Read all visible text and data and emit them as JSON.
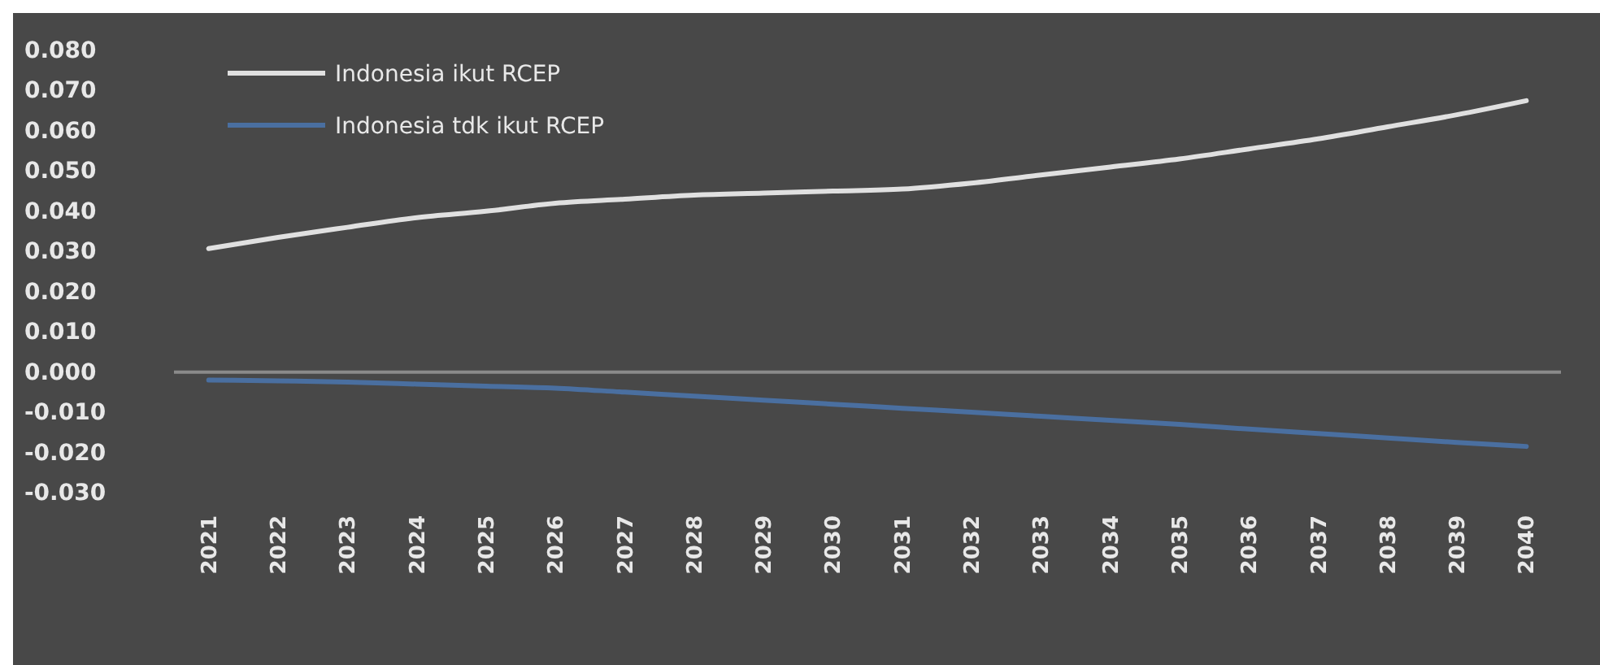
{
  "chart_data": {
    "type": "line",
    "categories": [
      "2021",
      "2022",
      "2023",
      "2024",
      "2025",
      "2026",
      "2027",
      "2028",
      "2029",
      "2030",
      "2031",
      "2032",
      "2033",
      "2034",
      "2035",
      "2036",
      "2037",
      "2038",
      "2039",
      "2040"
    ],
    "series": [
      {
        "name": "Indonesia ikut RCEP",
        "color": "#e0e0e0",
        "values": [
          0.0307,
          0.0335,
          0.036,
          0.0384,
          0.04,
          0.042,
          0.043,
          0.044,
          0.0445,
          0.045,
          0.0455,
          0.047,
          0.049,
          0.051,
          0.053,
          0.0555,
          0.058,
          0.061,
          0.064,
          0.0675
        ]
      },
      {
        "name": "Indonesia tdk ikut RCEP",
        "color": "#4a6fa0",
        "values": [
          -0.002,
          -0.0022,
          -0.0025,
          -0.003,
          -0.0035,
          -0.004,
          -0.005,
          -0.006,
          -0.007,
          -0.008,
          -0.009,
          -0.01,
          -0.011,
          -0.012,
          -0.013,
          -0.0142,
          -0.0153,
          -0.0164,
          -0.0175,
          -0.0185
        ]
      }
    ],
    "ylim": [
      -0.03,
      0.08
    ],
    "yticks": [
      {
        "value": 0.08,
        "label": "0.080"
      },
      {
        "value": 0.07,
        "label": "0.070"
      },
      {
        "value": 0.06,
        "label": "0.060"
      },
      {
        "value": 0.05,
        "label": "0.050"
      },
      {
        "value": 0.04,
        "label": "0.040"
      },
      {
        "value": 0.03,
        "label": "0.030"
      },
      {
        "value": 0.02,
        "label": "0.020"
      },
      {
        "value": 0.01,
        "label": "0.010"
      },
      {
        "value": 0,
        "label": "0.000"
      },
      {
        "value": -0.01,
        "label": "-0.010"
      },
      {
        "value": -0.02,
        "label": "-0.020"
      },
      {
        "value": -0.03,
        "label": "-0.030"
      }
    ],
    "ref_lines": [
      {
        "axis": "y",
        "value": 0,
        "color": "#8a8a8a"
      }
    ],
    "grid": false,
    "legend": "top left",
    "marker": "none",
    "line_style": "solid"
  }
}
